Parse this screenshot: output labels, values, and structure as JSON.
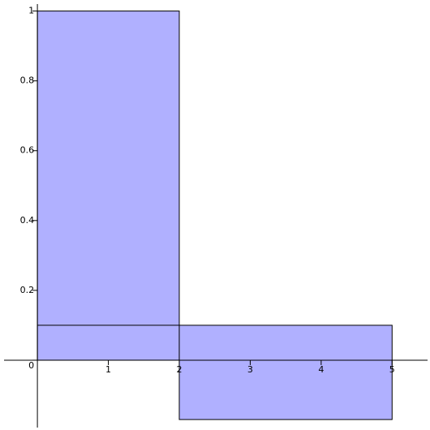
{
  "chart_data": {
    "type": "rectangles",
    "rects": [
      {
        "x0": 0,
        "x1": 2,
        "y0": 0,
        "y1": 1
      },
      {
        "x0": 0,
        "x1": 2,
        "y0": 0,
        "y1": 0.1
      },
      {
        "x0": 2,
        "x1": 5,
        "y0": -0.17,
        "y1": 0.1
      }
    ],
    "color": "#b0b0ff",
    "xlim": [
      -0.47,
      5.5
    ],
    "ylim": [
      -0.193,
      1.02
    ],
    "xticks": [
      1,
      2,
      3,
      4,
      5
    ],
    "yticks": [
      0,
      0.2,
      0.4,
      0.6,
      0.8,
      1
    ]
  }
}
